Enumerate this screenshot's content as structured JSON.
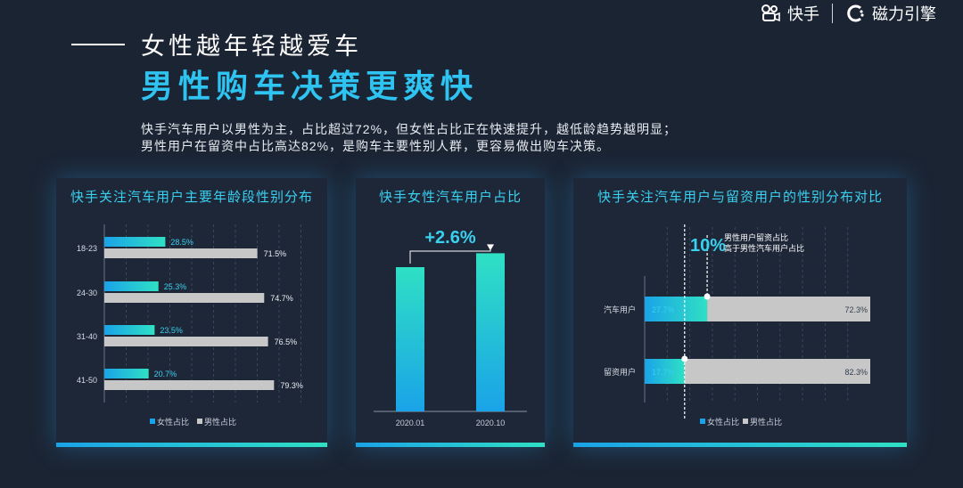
{
  "brand": {
    "kuaishou": "快手",
    "cili": "磁力引擎"
  },
  "header": {
    "title1": "女性越年轻越爱车",
    "title2": "男性购车决策更爽快"
  },
  "description": {
    "line1": "快手汽车用户以男性为主，占比超过72%，但女性占比正在快速提升，越低龄趋势越明显；",
    "line2": "男性用户在留资中占比高达82%，是购车主要性别人群，更容易做出购车决策。"
  },
  "colors": {
    "female_start": "#1aa3e8",
    "female_end": "#2fe0c4",
    "male": "#c7c7c7",
    "title_accent": "#2ec3f0"
  },
  "chart_data": [
    {
      "type": "bar",
      "orientation": "horizontal",
      "title": "快手关注汽车用户主要年龄段性别分布",
      "categories": [
        "18-23",
        "24-30",
        "31-40",
        "41-50"
      ],
      "series": [
        {
          "name": "女性占比",
          "values": [
            28.5,
            25.3,
            23.5,
            20.7
          ],
          "labels": [
            "28.5%",
            "25.3%",
            "23.5%",
            "20.7%"
          ]
        },
        {
          "name": "男性占比",
          "values": [
            71.5,
            74.7,
            76.5,
            79.3
          ],
          "labels": [
            "71.5%",
            "74.7%",
            "76.5%",
            "79.3%"
          ]
        }
      ],
      "xlim": [
        0,
        100
      ],
      "grid": true,
      "legend": "bottom"
    },
    {
      "type": "bar",
      "title": "快手女性汽车用户占比",
      "categories": [
        "2020.01",
        "2020.10"
      ],
      "values": [
        27.0,
        29.6
      ],
      "ylim": [
        0,
        35
      ],
      "annotation": "+2.6%",
      "grid": false
    },
    {
      "type": "bar",
      "orientation": "horizontal",
      "stacked": true,
      "title": "快手关注汽车用户与留资用户的性别分布对比",
      "categories": [
        "汽车用户",
        "留资用户"
      ],
      "series": [
        {
          "name": "女性占比",
          "values": [
            27.7,
            17.7
          ],
          "labels": [
            "27.7%",
            "17.7%"
          ]
        },
        {
          "name": "男性占比",
          "values": [
            72.3,
            82.3
          ],
          "labels": [
            "72.3%",
            "82.3%"
          ]
        }
      ],
      "xlim": [
        0,
        100
      ],
      "annotation": {
        "value": "10%",
        "text1": "男性用户留资占比",
        "text2": "高于男性汽车用户占比"
      },
      "grid": true,
      "legend": "bottom"
    }
  ]
}
